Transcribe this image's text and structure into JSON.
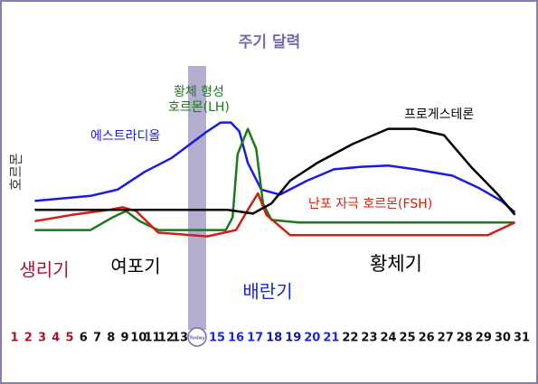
{
  "chart_data": {
    "type": "line",
    "title": "주기 달력",
    "y_label": "호르몬",
    "categories": [
      "1",
      "2",
      "3",
      "4",
      "5",
      "6",
      "7",
      "8",
      "9",
      "10",
      "11",
      "12",
      "13",
      "Today",
      "15",
      "16",
      "17",
      "18",
      "19",
      "20",
      "21",
      "22",
      "23",
      "24",
      "25",
      "26",
      "27",
      "28",
      "29",
      "30",
      "31"
    ],
    "category_colors": [
      "#a01830",
      "#a01830",
      "#a01830",
      "#a01830",
      "#a01830",
      "#111111",
      "#111111",
      "#111111",
      "#111111",
      "#111111",
      "#111111",
      "#111111",
      "#111111",
      "#7a6aa8",
      "#1a2ad0",
      "#1a2ad0",
      "#1a2ad0",
      "#1a1a90",
      "#1a1a90",
      "#1a2ad0",
      "#1a2ad0",
      "#111111",
      "#111111",
      "#111111",
      "#111111",
      "#111111",
      "#111111",
      "#111111",
      "#111111",
      "#111111",
      "#111111"
    ],
    "xlim": [
      1,
      31
    ],
    "ylim": [
      0,
      100
    ],
    "series": [
      {
        "name": "에스트라디올",
        "color": "#1a1ae0",
        "x": [
          2.2,
          5.5,
          7.1,
          8.7,
          10.3,
          11.4,
          12.4,
          13.2,
          13.8,
          14.3,
          14.8,
          15.6,
          16.7,
          18.3,
          19.9,
          21.5,
          23.1,
          24.7,
          26.9,
          28.5,
          29.8,
          30.6
        ],
        "values": [
          34,
          38,
          43,
          57,
          68,
          79,
          89,
          96,
          96,
          89,
          64,
          43,
          39,
          50,
          59,
          61,
          62,
          59,
          54,
          44,
          34,
          25
        ]
      },
      {
        "name": "황체 형성\n호르몬(LH)",
        "color": "#1a7a1a",
        "x": [
          2.2,
          5.5,
          6.8,
          7.6,
          8.4,
          9.5,
          13.5,
          13.9,
          14.2,
          14.8,
          15.3,
          15.7,
          16.2,
          17.8,
          30.6
        ],
        "values": [
          11,
          11,
          21,
          26,
          18,
          11,
          11,
          21,
          71,
          91,
          75,
          32,
          19,
          17,
          17
        ]
      },
      {
        "name": "난포 자극 호르몬(FSH)",
        "color": "#d02010",
        "x": [
          2.2,
          4.4,
          6.6,
          7.4,
          8.2,
          9.5,
          12.4,
          14.1,
          14.8,
          15.4,
          15.9,
          17.3,
          29.0,
          30.6
        ],
        "values": [
          18,
          23,
          27,
          29,
          26,
          9,
          6,
          11,
          27,
          40,
          23,
          7,
          7,
          17
        ]
      },
      {
        "name": "프로게스테론",
        "color": "#000000",
        "x": [
          2.2,
          13.6,
          15.1,
          16.2,
          17.3,
          18.9,
          21.0,
          23.1,
          24.7,
          26.4,
          28.0,
          29.6,
          30.6
        ],
        "values": [
          27,
          27,
          24,
          32,
          50,
          64,
          79,
          91,
          91,
          86,
          61,
          39,
          23
        ]
      }
    ],
    "annotations": [
      {
        "text": "생리기",
        "color": "#a01830"
      },
      {
        "text": "여포기",
        "color": "#000000"
      },
      {
        "text": "배란기",
        "color": "#1a2ad0"
      },
      {
        "text": "황체기",
        "color": "#000000"
      }
    ]
  }
}
